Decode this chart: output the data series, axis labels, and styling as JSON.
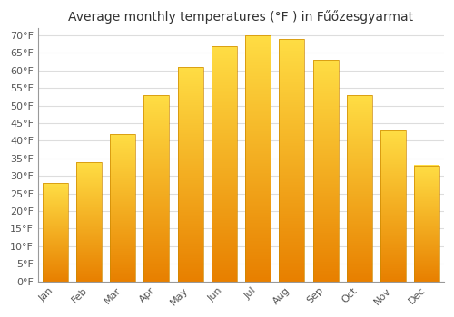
{
  "title": "Average monthly temperatures (°F ) in Fűőzesgyarmat",
  "months": [
    "Jan",
    "Feb",
    "Mar",
    "Apr",
    "May",
    "Jun",
    "Jul",
    "Aug",
    "Sep",
    "Oct",
    "Nov",
    "Dec"
  ],
  "values": [
    28,
    34,
    42,
    53,
    61,
    67,
    70,
    69,
    63,
    53,
    43,
    33
  ],
  "bar_color_top": "#FFDD44",
  "bar_color_bottom": "#E88000",
  "bar_edge_color": "#CC8800",
  "background_color": "#FFFFFF",
  "plot_bg_color": "#FFFFFF",
  "grid_color": "#DDDDDD",
  "text_color": "#555555",
  "title_color": "#333333",
  "ylim": [
    0,
    72
  ],
  "yticks": [
    0,
    5,
    10,
    15,
    20,
    25,
    30,
    35,
    40,
    45,
    50,
    55,
    60,
    65,
    70
  ],
  "title_fontsize": 10,
  "tick_fontsize": 8,
  "bar_width": 0.75
}
